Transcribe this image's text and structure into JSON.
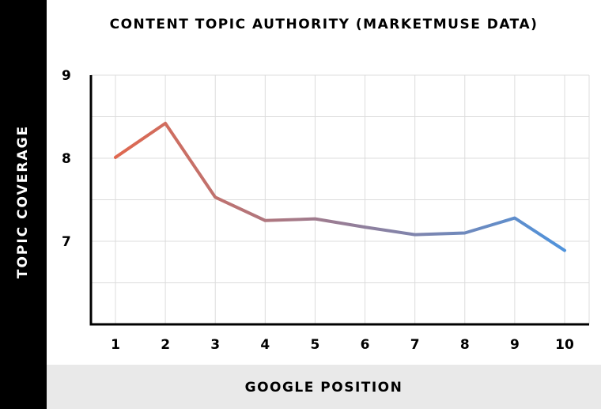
{
  "chart_data": {
    "type": "line",
    "title": "CONTENT TOPIC AUTHORITY (MARKETMUSE DATA)",
    "xlabel": "GOOGLE POSITION",
    "ylabel": "TOPIC COVERAGE",
    "x": [
      1,
      2,
      3,
      4,
      5,
      6,
      7,
      8,
      9,
      10
    ],
    "series": [
      {
        "values": [
          8.01,
          8.42,
          7.53,
          7.25,
          7.27,
          7.17,
          7.08,
          7.1,
          7.28,
          6.89
        ]
      }
    ],
    "ylim": [
      6,
      9
    ],
    "yticks": [
      9,
      8,
      7
    ],
    "xticks": [
      "1",
      "2",
      "3",
      "4",
      "5",
      "6",
      "7",
      "8",
      "9",
      "10"
    ],
    "grid": true,
    "colors": {
      "line_start": "#e0684f",
      "line_end": "#4f93dc",
      "grid": "#dcdcdc",
      "axis": "#000000"
    }
  }
}
